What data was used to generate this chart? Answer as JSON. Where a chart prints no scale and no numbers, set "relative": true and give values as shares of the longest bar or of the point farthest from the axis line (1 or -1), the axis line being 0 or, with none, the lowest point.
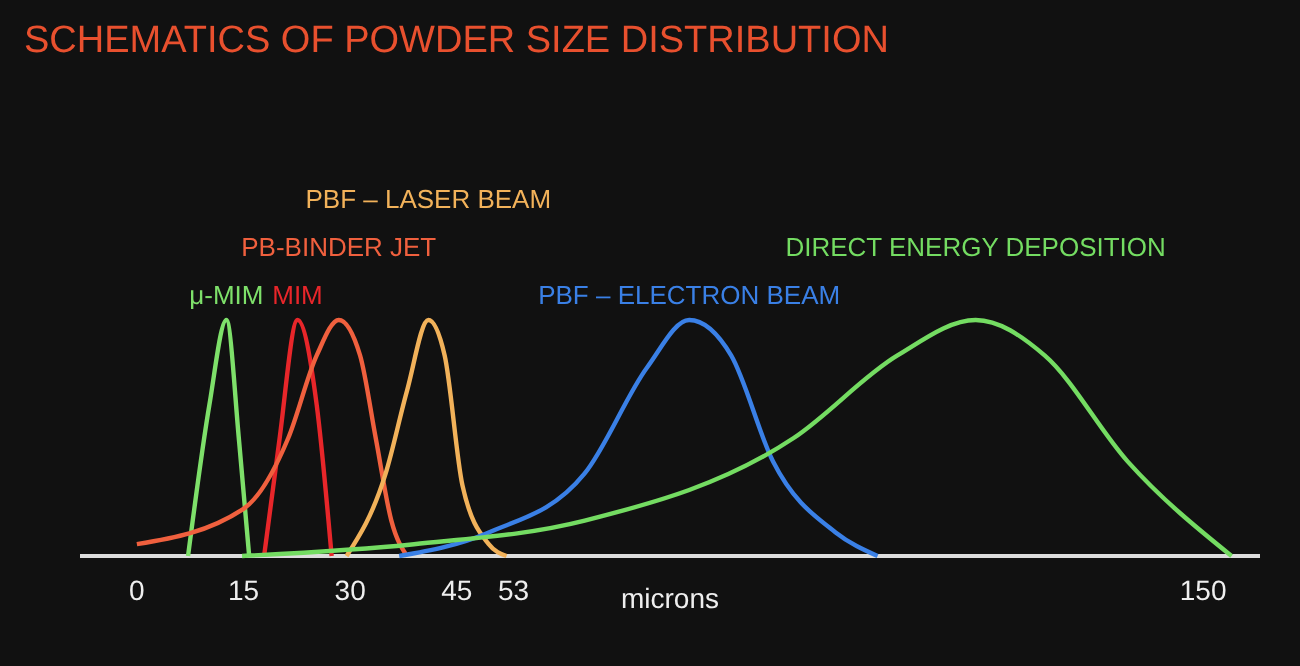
{
  "chart_data": {
    "type": "line",
    "title": "SCHEMATICS OF POWDER SIZE DISTRIBUTION",
    "xlabel": "microns",
    "relative": true,
    "xlim": [
      -8,
      158
    ],
    "xticks": [
      0,
      15,
      30,
      45,
      53,
      150
    ],
    "line_style": "solid",
    "marker": "none",
    "grid": false,
    "legend": false,
    "tick_labels": "x",
    "series": [
      {
        "name": "μ-MIM",
        "color": "#7ee06a",
        "x": [
          7.2,
          10.2,
          12.6,
          14.4,
          15.8
        ],
        "values": [
          0,
          0.64,
          1,
          0.48,
          0
        ]
      },
      {
        "name": "MIM",
        "color": "#e8262a",
        "x": [
          17.9,
          20,
          22.6,
          25.3,
          27.4
        ],
        "values": [
          0,
          0.48,
          1,
          0.64,
          0
        ]
      },
      {
        "name": "PB-BINDER JET",
        "color": "#f0603e",
        "x": [
          0,
          15,
          21.3,
          25.3,
          28.4,
          31.4,
          33.6,
          35.8,
          38
        ],
        "values": [
          0.05,
          0.2,
          0.5,
          0.85,
          1,
          0.85,
          0.5,
          0.15,
          0
        ]
      },
      {
        "name": "PBF – LASER BEAM",
        "color": "#f2b25a",
        "x": [
          29.5,
          35,
          38,
          41,
          43.3,
          45.8,
          49.5,
          52
        ],
        "values": [
          0,
          0.35,
          0.7,
          1,
          0.85,
          0.3,
          0.05,
          0
        ]
      },
      {
        "name": "PBF – ELECTRON BEAM",
        "color": "#3a80e6",
        "x": [
          36.9,
          49.5,
          63,
          71.8,
          77.7,
          83.6,
          89.5,
          98.3,
          104.2
        ],
        "values": [
          0,
          0.1,
          0.35,
          0.8,
          1,
          0.85,
          0.4,
          0.1,
          0
        ]
      },
      {
        "name": "DIRECT ENERGY DEPOSITION",
        "color": "#74dc62",
        "x": [
          14.8,
          39,
          63,
          92.4,
          107,
          118,
          127.7,
          139.4,
          154
        ],
        "values": [
          0,
          0.05,
          0.15,
          0.5,
          0.85,
          1,
          0.85,
          0.4,
          0
        ]
      }
    ]
  }
}
